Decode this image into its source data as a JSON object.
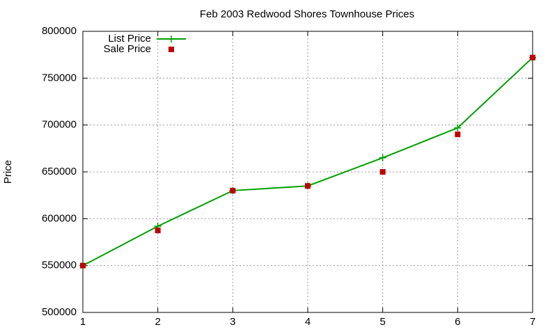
{
  "chart_data": {
    "type": "line",
    "title": "Feb 2003 Redwood Shores Townhouse Prices",
    "y_label": "Price",
    "x": [
      1,
      2,
      3,
      4,
      5,
      6,
      7
    ],
    "series": [
      {
        "name": "List Price",
        "color": "#00a000",
        "marker": "plus",
        "line": true,
        "values": [
          550000,
          592000,
          630000,
          635000,
          665000,
          697000,
          772000
        ]
      },
      {
        "name": "Sale Price",
        "color": "#c00000",
        "marker": "square",
        "line": false,
        "values": [
          550000,
          587500,
          630000,
          635000,
          650000,
          690000,
          772000
        ]
      }
    ],
    "xlim": [
      1,
      7
    ],
    "xticks": [
      1,
      2,
      3,
      4,
      5,
      6,
      7
    ],
    "ylim": [
      500000,
      800000
    ],
    "yticks": [
      500000,
      550000,
      600000,
      650000,
      700000,
      750000,
      800000
    ],
    "grid": true,
    "legend": "top-left"
  }
}
